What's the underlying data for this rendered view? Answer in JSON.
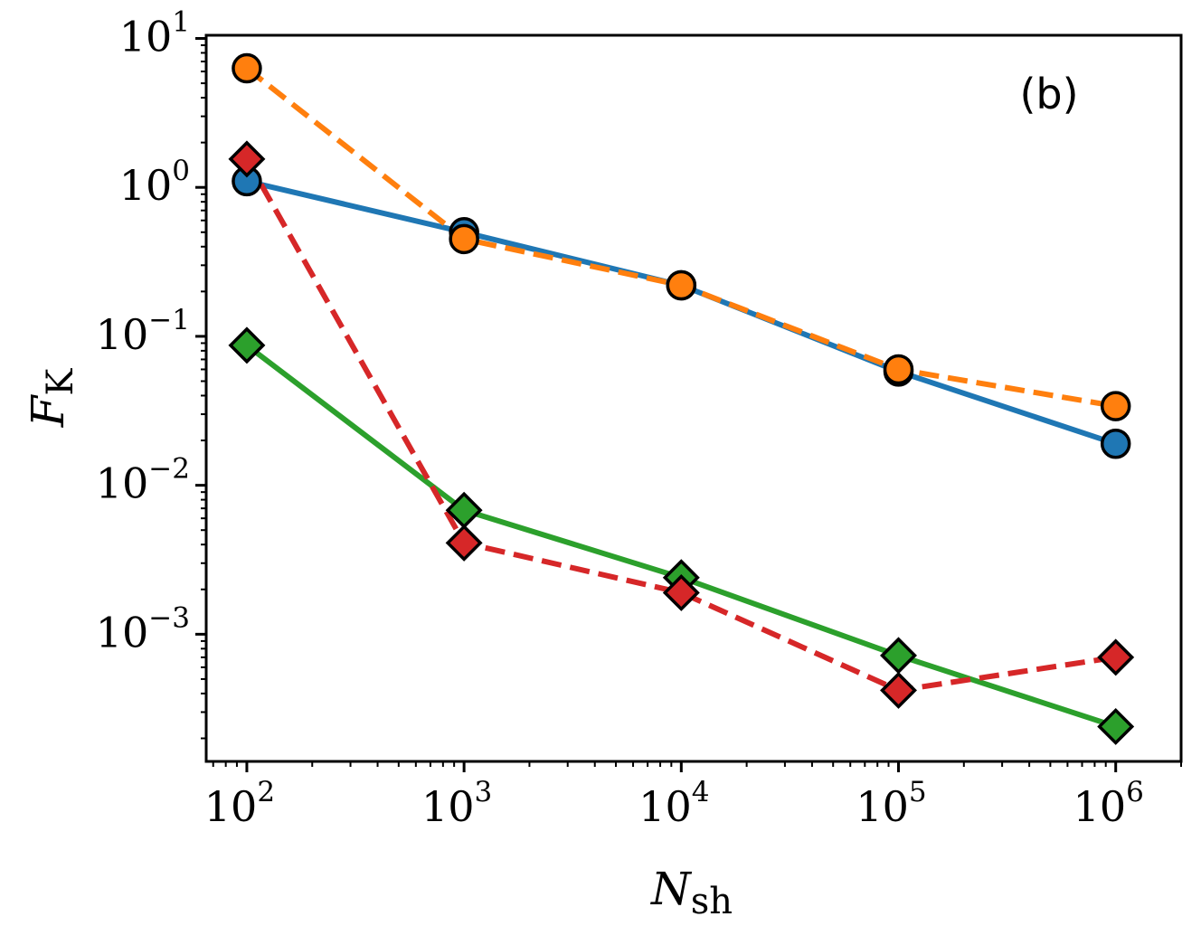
{
  "chart_data": {
    "type": "line",
    "title": "",
    "panel_label": "(b)",
    "xlabel": {
      "main": "N",
      "sub": "sh"
    },
    "ylabel": {
      "main": "F",
      "sub": "K"
    },
    "xscale": "log",
    "yscale": "log",
    "xlim": [
      65,
      2000000
    ],
    "ylim": [
      0.00014,
      10.5
    ],
    "x": [
      100,
      1000,
      10000,
      100000,
      1000000
    ],
    "xticks": [
      {
        "base": "10",
        "exp": "2",
        "value": 100
      },
      {
        "base": "10",
        "exp": "3",
        "value": 1000
      },
      {
        "base": "10",
        "exp": "4",
        "value": 10000
      },
      {
        "base": "10",
        "exp": "5",
        "value": 100000
      },
      {
        "base": "10",
        "exp": "6",
        "value": 1000000
      }
    ],
    "yticks": [
      {
        "base": "10",
        "exp": "1",
        "value": 10
      },
      {
        "base": "10",
        "exp": "0",
        "value": 1
      },
      {
        "base": "10",
        "exp": "−1",
        "value": 0.1
      },
      {
        "base": "10",
        "exp": "−2",
        "value": 0.01
      },
      {
        "base": "10",
        "exp": "−3",
        "value": 0.001
      }
    ],
    "series": [
      {
        "name": "blue-circle-solid",
        "color": "#1f77b4",
        "marker": "circle",
        "linestyle": "solid",
        "values": [
          1.1,
          0.5,
          0.22,
          0.058,
          0.019
        ]
      },
      {
        "name": "orange-circle-dashed",
        "color": "#ff7f0e",
        "marker": "circle",
        "linestyle": "dashed",
        "values": [
          6.3,
          0.45,
          0.22,
          0.06,
          0.034
        ]
      },
      {
        "name": "green-diamond-solid",
        "color": "#2ca02c",
        "marker": "diamond",
        "linestyle": "solid",
        "values": [
          0.087,
          0.0068,
          0.0024,
          0.00072,
          0.00024
        ]
      },
      {
        "name": "red-diamond-dashed",
        "color": "#d62728",
        "marker": "diamond",
        "linestyle": "dashed",
        "values": [
          1.55,
          0.0041,
          0.0019,
          0.00042,
          0.0007
        ]
      }
    ],
    "grid": false,
    "legend": "none"
  }
}
